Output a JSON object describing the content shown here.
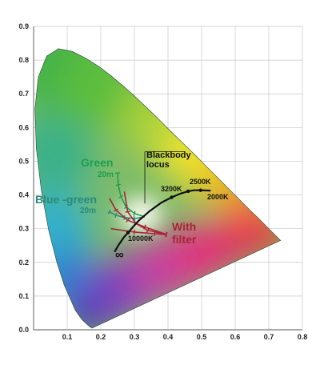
{
  "chart_data": {
    "type": "scatter",
    "title": "",
    "xlabel": "",
    "ylabel": "",
    "xlim": [
      0,
      0.8
    ],
    "ylim": [
      0,
      0.9
    ],
    "x_ticks": [
      "0.1",
      "0.2",
      "0.3",
      "0.4",
      "0.5",
      "0.6",
      "0.7",
      "0.8"
    ],
    "y_ticks": [
      "0.0",
      "0.1",
      "0.2",
      "0.3",
      "0.4",
      "0.5",
      "0.6",
      "0.7",
      "0.8",
      "0.9"
    ],
    "grid": true,
    "spectral_locus": [
      [
        0.174,
        0.005
      ],
      [
        0.167,
        0.009
      ],
      [
        0.144,
        0.03
      ],
      [
        0.124,
        0.058
      ],
      [
        0.091,
        0.133
      ],
      [
        0.069,
        0.201
      ],
      [
        0.045,
        0.295
      ],
      [
        0.023,
        0.413
      ],
      [
        0.008,
        0.538
      ],
      [
        0.004,
        0.655
      ],
      [
        0.014,
        0.75
      ],
      [
        0.039,
        0.812
      ],
      [
        0.074,
        0.834
      ],
      [
        0.115,
        0.826
      ],
      [
        0.155,
        0.806
      ],
      [
        0.193,
        0.782
      ],
      [
        0.23,
        0.754
      ],
      [
        0.266,
        0.724
      ],
      [
        0.302,
        0.692
      ],
      [
        0.337,
        0.659
      ],
      [
        0.373,
        0.624
      ],
      [
        0.408,
        0.589
      ],
      [
        0.444,
        0.554
      ],
      [
        0.479,
        0.52
      ],
      [
        0.512,
        0.487
      ],
      [
        0.544,
        0.455
      ],
      [
        0.575,
        0.424
      ],
      [
        0.603,
        0.396
      ],
      [
        0.627,
        0.372
      ],
      [
        0.648,
        0.351
      ],
      [
        0.666,
        0.334
      ],
      [
        0.68,
        0.32
      ],
      [
        0.691,
        0.309
      ],
      [
        0.735,
        0.265
      ]
    ],
    "blackbody_locus": [
      [
        0.241,
        0.231
      ],
      [
        0.252,
        0.25
      ],
      [
        0.269,
        0.275
      ],
      [
        0.281,
        0.288
      ],
      [
        0.3,
        0.31
      ],
      [
        0.313,
        0.324
      ],
      [
        0.345,
        0.352
      ],
      [
        0.38,
        0.377
      ],
      [
        0.411,
        0.393
      ],
      [
        0.437,
        0.404
      ],
      [
        0.46,
        0.411
      ],
      [
        0.477,
        0.414
      ],
      [
        0.497,
        0.414
      ],
      [
        0.527,
        0.413
      ]
    ],
    "filter_curves": [
      {
        "name": "Green",
        "color": "#1e9e4f",
        "points": [
          [
            0.331,
            0.335
          ],
          [
            0.3,
            0.345
          ],
          [
            0.275,
            0.365
          ],
          [
            0.26,
            0.395
          ],
          [
            0.252,
            0.43
          ],
          [
            0.25,
            0.465
          ]
        ]
      },
      {
        "name": "Blue-green",
        "color": "#2a8a7a",
        "points": [
          [
            0.331,
            0.335
          ],
          [
            0.3,
            0.33
          ],
          [
            0.27,
            0.333
          ],
          [
            0.245,
            0.34
          ],
          [
            0.225,
            0.35
          ]
        ]
      },
      {
        "name": "With filter",
        "color": "#a8243a",
        "points": [
          [
            [
              0.23,
              0.3
            ],
            [
              0.3,
              0.29
            ],
            [
              0.36,
              0.285
            ],
            [
              0.395,
              0.282
            ]
          ],
          [
            [
              0.226,
              0.39
            ],
            [
              0.245,
              0.355
            ],
            [
              0.28,
              0.325
            ],
            [
              0.331,
              0.305
            ],
            [
              0.395,
              0.283
            ]
          ],
          [
            [
              0.27,
              0.41
            ],
            [
              0.28,
              0.35
            ],
            [
              0.305,
              0.315
            ],
            [
              0.34,
              0.295
            ],
            [
              0.395,
              0.283
            ]
          ]
        ]
      }
    ],
    "annotations": {
      "green": "Green",
      "green_20m": "20m",
      "blue_green": "Blue -green",
      "blue_green_20m": "20m",
      "blackbody_1": "Blackbody",
      "blackbody_2": "locus",
      "cct_3200": "3200K",
      "cct_2500": "2500K",
      "cct_2000": "2000K",
      "cct_10000": "10000K",
      "infinity": "∞",
      "with_1": "With",
      "with_2": "filter"
    },
    "colors": {
      "green_label": "#1e9e4f",
      "blue_green_label": "#2a8a7a",
      "with_filter_label": "#a8243a",
      "locus_line": "#111111",
      "grid": "#c8c8c8"
    }
  }
}
